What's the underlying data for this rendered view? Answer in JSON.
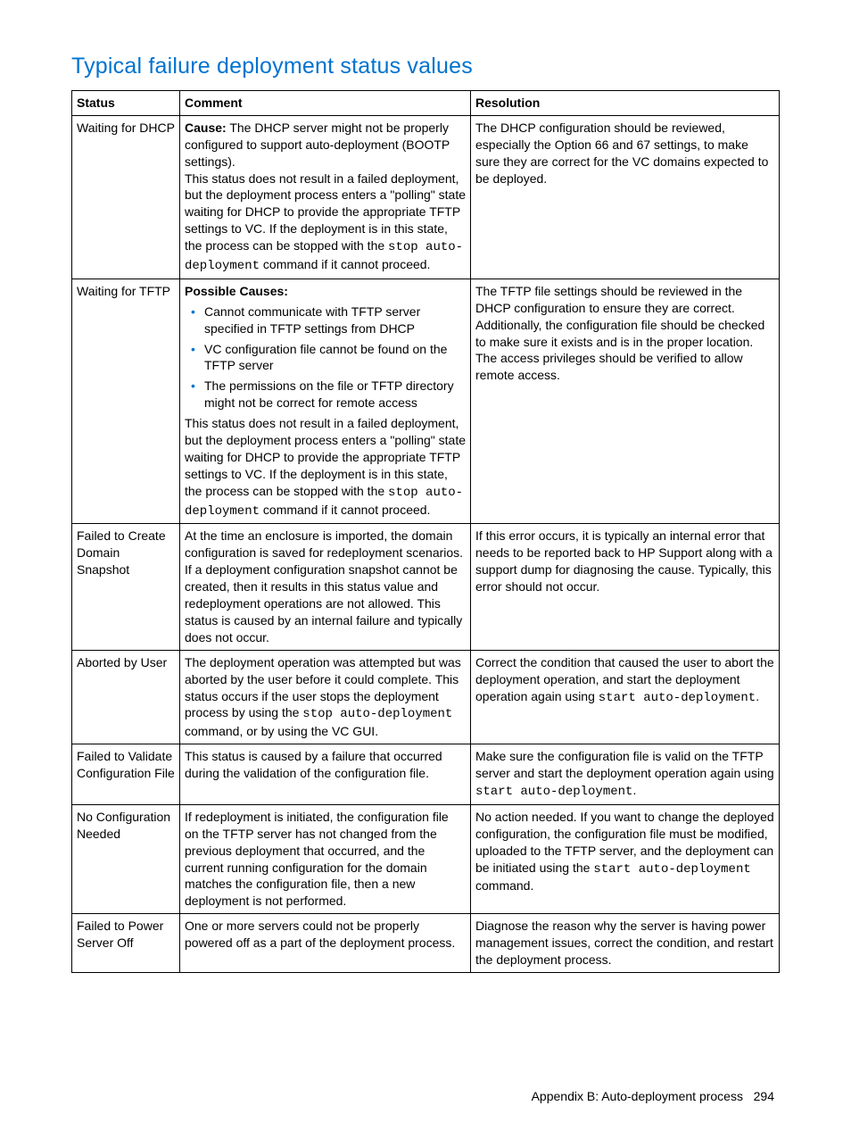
{
  "heading": "Typical failure deployment status values",
  "columns": {
    "c1": "Status",
    "c2": "Comment",
    "c3": "Resolution"
  },
  "rows": {
    "r1": {
      "status": "Waiting for DHCP",
      "comment_label": "Cause:",
      "comment_p1": " The DHCP server might not be properly configured to support auto-deployment (BOOTP settings).",
      "comment_p2a": "This status does not result in a failed deployment, but the deployment process enters a \"polling\" state waiting for DHCP to provide the appropriate TFTP settings to VC. If the deployment is in this state, the process can be stopped with the ",
      "code1": "stop auto-deployment",
      "comment_p2b": " command if it cannot proceed.",
      "resolution": "The DHCP configuration should be reviewed, especially the Option 66 and 67 settings, to make sure they are correct for the VC domains expected to be deployed."
    },
    "r2": {
      "status": "Waiting for TFTP",
      "comment_label": "Possible Causes:",
      "bullets": {
        "b1": "Cannot communicate with TFTP server specified in TFTP settings from DHCP",
        "b2": "VC configuration file cannot be found on the TFTP server",
        "b3": "The permissions on the file or TFTP directory might not be correct for remote access"
      },
      "comment_p2a": "This status does not result in a failed deployment, but the deployment process enters a \"polling\" state waiting for DHCP to provide the appropriate TFTP settings to VC. If the deployment is in this state, the process can be stopped with the ",
      "code1": "stop auto-deployment",
      "comment_p2b": " command if it cannot proceed.",
      "resolution": "The TFTP file settings should be reviewed in the DHCP configuration to ensure they are correct. Additionally, the configuration file should be checked to make sure it exists and is in the proper location. The access privileges should be verified to allow remote access."
    },
    "r3": {
      "status": "Failed to Create Domain Snapshot",
      "comment": "At the time an enclosure is imported, the domain configuration is saved for redeployment scenarios. If a deployment configuration snapshot cannot be created, then it results in this status value and redeployment operations are not allowed. This status is caused by an internal failure and typically does not occur.",
      "resolution": "If this error occurs, it is typically an internal error that needs to be reported back to HP Support along with a support dump for diagnosing the cause. Typically, this error should not occur."
    },
    "r4": {
      "status": "Aborted by User",
      "comment_a": "The deployment operation was attempted but was aborted by the user before it could complete. This status occurs if the user stops the deployment process by using the ",
      "code1": "stop auto-deployment",
      "comment_b": " command, or by using the VC GUI.",
      "resolution_a": "Correct the condition that caused the user to abort the deployment operation, and start the deployment operation again using ",
      "code2": "start auto-deployment",
      "resolution_b": "."
    },
    "r5": {
      "status": "Failed to Validate Configuration File",
      "comment": "This status is caused by a failure that occurred during the validation of the configuration file.",
      "resolution_a": "Make sure the configuration file is valid on the TFTP server and start the deployment operation again using ",
      "code1": "start auto-deployment",
      "resolution_b": "."
    },
    "r6": {
      "status": "No Configuration Needed",
      "comment": "If redeployment is initiated, the configuration file on the TFTP server has not changed from the previous deployment that occurred, and the current running configuration for the domain matches the configuration file, then a new deployment is not performed.",
      "resolution_a": "No action needed.  If you want to change the deployed configuration, the configuration file must be modified, uploaded to the TFTP server, and the deployment can be initiated using the ",
      "code1": "start auto-deployment",
      "resolution_b": " command."
    },
    "r7": {
      "status": "Failed to Power Server Off",
      "comment": "One or more servers could not be properly powered off as a part of the deployment process.",
      "resolution": "Diagnose the reason why the server is having power management issues, correct the condition, and restart the deployment process."
    }
  },
  "footer": {
    "section": "Appendix B: Auto-deployment process",
    "page": "294"
  }
}
